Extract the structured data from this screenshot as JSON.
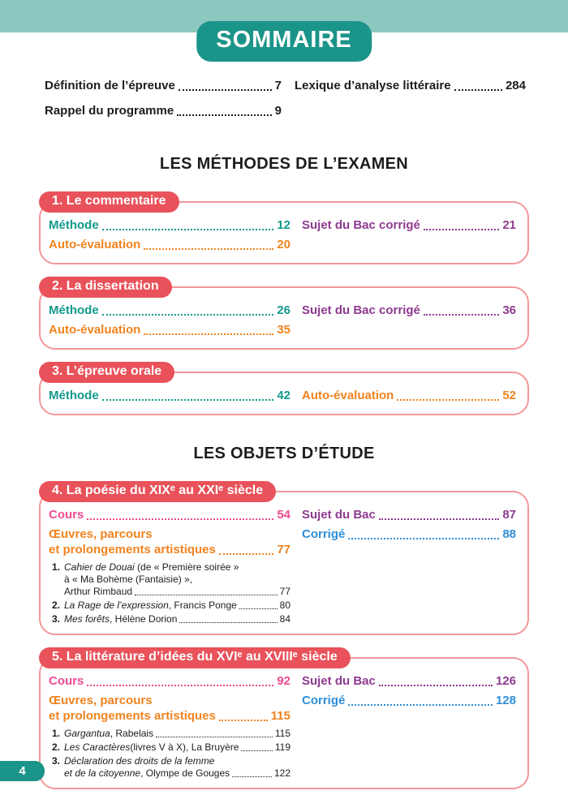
{
  "colors": {
    "band": "#8cc8c0",
    "brand": "#1b9489",
    "pill_red": "#e9525a",
    "box_border": "#f49799",
    "black": "#1d1d1b",
    "teal": "#13998c",
    "orange": "#f0831f",
    "purple": "#8e3a90",
    "pink": "#ee4b93",
    "blue": "#2e8ed8"
  },
  "header": {
    "title": "SOMMAIRE"
  },
  "intro_links": {
    "left": [
      {
        "label": "Définition de l’épreuve",
        "page": "7",
        "color": "black"
      },
      {
        "label": "Rappel du programme",
        "page": "9",
        "color": "black"
      }
    ],
    "right": [
      {
        "label": "Lexique d’analyse littéraire",
        "page": "284",
        "color": "black"
      }
    ]
  },
  "sections": [
    {
      "heading": "LES MÉTHODES DE L’EXAMEN",
      "boxes": [
        {
          "title": "1. Le commentaire",
          "left": [
            {
              "label": "Méthode",
              "page": "12",
              "color": "teal"
            },
            {
              "label": "Auto-évaluation",
              "page": "20",
              "color": "orange"
            }
          ],
          "right": [
            {
              "label": "Sujet du Bac corrigé",
              "page": "21",
              "color": "purple"
            }
          ]
        },
        {
          "title": "2. La dissertation",
          "left": [
            {
              "label": "Méthode",
              "page": "26",
              "color": "teal"
            },
            {
              "label": "Auto-évaluation",
              "page": "35",
              "color": "orange"
            }
          ],
          "right": [
            {
              "label": "Sujet du Bac corrigé",
              "page": "36",
              "color": "purple"
            }
          ]
        },
        {
          "title": "3. L’épreuve orale",
          "left": [
            {
              "label": "Méthode",
              "page": "42",
              "color": "teal"
            }
          ],
          "right": [
            {
              "label": "Auto-évaluation",
              "page": "52",
              "color": "orange"
            }
          ]
        }
      ]
    },
    {
      "heading": "LES OBJETS D’ÉTUDE",
      "boxes": [
        {
          "title": "4. La poésie du XIXᵉ au XXIᵉ siècle",
          "left": [
            {
              "label": "Cours",
              "page": "54",
              "color": "pink"
            },
            {
              "label": "Œuvres, parcours",
              "label2": "et prolongements artistiques",
              "page": "77",
              "color": "orange"
            }
          ],
          "works": [
            {
              "num": "1.",
              "page": "77",
              "rows": [
                [
                  {
                    "t": "Cahier de Douai",
                    "i": true
                  },
                  {
                    "t": " (de « Première soirée »"
                  }
                ],
                [
                  {
                    "t": "à « Ma Bohème (Fantaisie) »,"
                  }
                ],
                [
                  {
                    "t": "Arthur Rimbaud"
                  }
                ]
              ]
            },
            {
              "num": "2.",
              "page": "80",
              "rows": [
                [
                  {
                    "t": "La Rage de l’expression",
                    "i": true
                  },
                  {
                    "t": ", Francis Ponge"
                  }
                ]
              ]
            },
            {
              "num": "3.",
              "page": "84",
              "rows": [
                [
                  {
                    "t": "Mes forêts",
                    "i": true
                  },
                  {
                    "t": ", Hélène Dorion"
                  }
                ]
              ]
            }
          ],
          "right": [
            {
              "label": "Sujet du Bac",
              "page": "87",
              "color": "purple"
            },
            {
              "label": "Corrigé",
              "page": "88",
              "color": "blue"
            }
          ]
        },
        {
          "title": "5. La littérature d’idées du XVIᵉ au XVIIIᵉ siècle",
          "left": [
            {
              "label": "Cours",
              "page": "92",
              "color": "pink"
            },
            {
              "label": "Œuvres, parcours",
              "label2": "et prolongements artistiques",
              "page": "115",
              "color": "orange"
            }
          ],
          "works": [
            {
              "num": "1.",
              "page": "115",
              "rows": [
                [
                  {
                    "t": "Gargantua",
                    "i": true
                  },
                  {
                    "t": ", Rabelais"
                  }
                ]
              ]
            },
            {
              "num": "2.",
              "page": "119",
              "rows": [
                [
                  {
                    "t": "Les Caractères",
                    "i": true
                  },
                  {
                    "t": " (livres V à X), La Bruyère"
                  }
                ]
              ]
            },
            {
              "num": "3.",
              "page": "122",
              "rows": [
                [
                  {
                    "t": "Déclaration des droits de la femme",
                    "i": true
                  }
                ],
                [
                  {
                    "t": "et de la citoyenne",
                    "i": true
                  },
                  {
                    "t": ", Olympe de Gouges"
                  }
                ]
              ]
            }
          ],
          "right": [
            {
              "label": "Sujet du Bac",
              "page": "126",
              "color": "purple"
            },
            {
              "label": "Corrigé",
              "page": "128",
              "color": "blue"
            }
          ]
        }
      ]
    }
  ],
  "footer": {
    "page_number": "4"
  }
}
